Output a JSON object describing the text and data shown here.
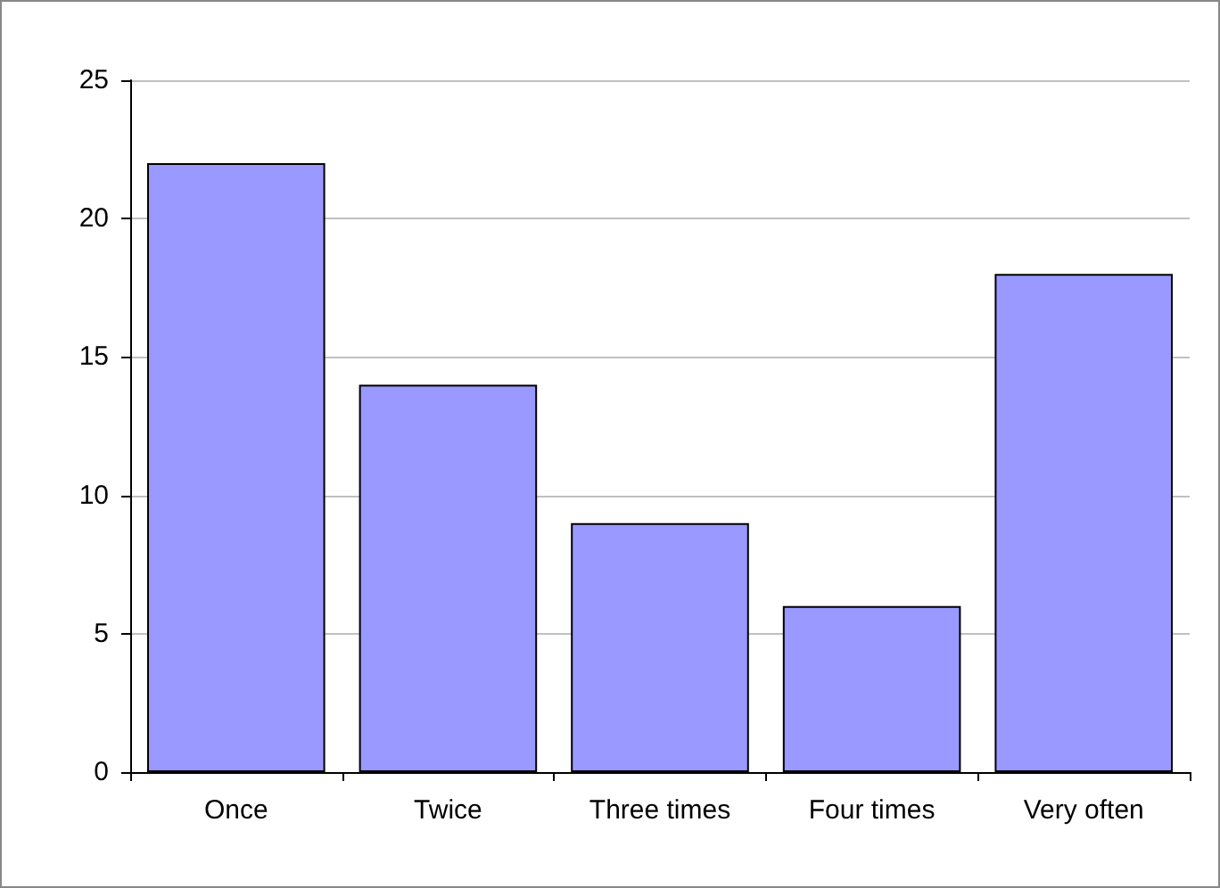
{
  "chart_data": {
    "type": "bar",
    "categories": [
      "Once",
      "Twice",
      "Three times",
      "Four times",
      "Very often"
    ],
    "values": [
      22,
      14,
      9,
      6,
      18
    ],
    "color": "#9999ff",
    "ylim": [
      0,
      25
    ],
    "yticks": [
      0,
      5,
      10,
      15,
      20,
      25
    ],
    "grid": "y"
  }
}
